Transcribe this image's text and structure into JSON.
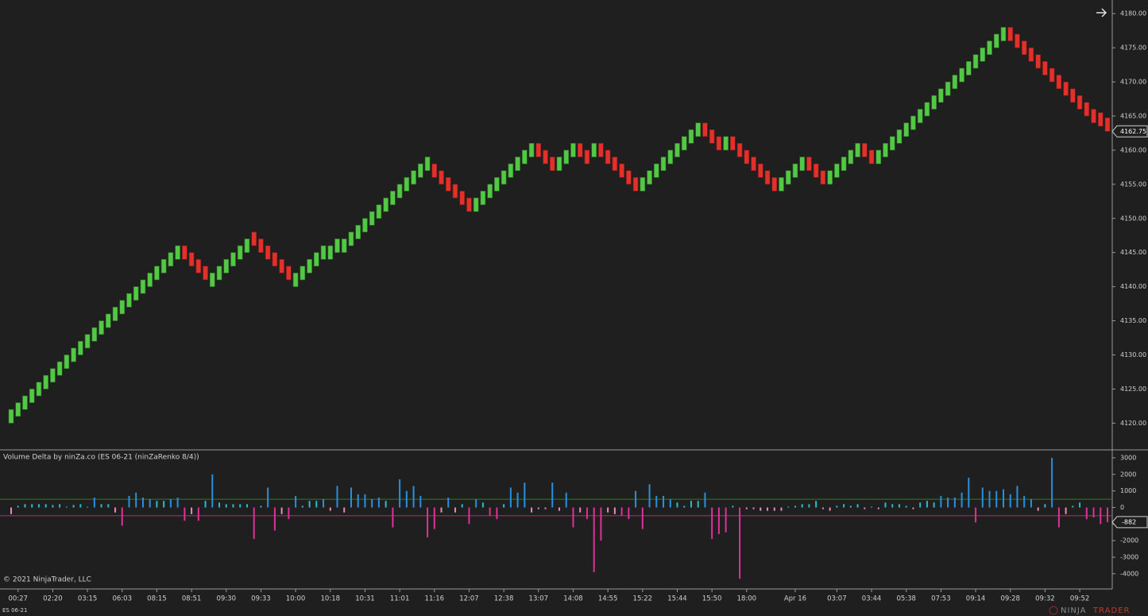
{
  "chart_data": {
    "type": "candlestick",
    "up_color": "#52c845",
    "down_color": "#e2302b",
    "ylim": [
      4116.2,
      4182
    ],
    "yticks": [
      {
        "value": 4120,
        "label": "4120.00"
      },
      {
        "value": 4125,
        "label": "4125.00"
      },
      {
        "value": 4130,
        "label": "4130.00"
      },
      {
        "value": 4135,
        "label": "4135.00"
      },
      {
        "value": 4140,
        "label": "4140.00"
      },
      {
        "value": 4145,
        "label": "4145.00"
      },
      {
        "value": 4150,
        "label": "4150.00"
      },
      {
        "value": 4155,
        "label": "4155.00"
      },
      {
        "value": 4160,
        "label": "4160.00"
      },
      {
        "value": 4165,
        "label": "4165.00"
      },
      {
        "value": 4170,
        "label": "4170.00"
      },
      {
        "value": 4175,
        "label": "4175.00"
      },
      {
        "value": 4180,
        "label": "4180.00"
      }
    ],
    "categories": [
      null,
      "00:27",
      null,
      null,
      null,
      null,
      "02:20",
      null,
      null,
      null,
      null,
      "03:15",
      null,
      null,
      null,
      null,
      "06:03",
      null,
      null,
      null,
      null,
      "08:15",
      null,
      null,
      null,
      null,
      "08:51",
      null,
      null,
      null,
      null,
      "09:30",
      null,
      null,
      null,
      null,
      "09:33",
      null,
      null,
      null,
      null,
      "10:00",
      null,
      null,
      null,
      null,
      "10:18",
      null,
      null,
      null,
      null,
      "10:31",
      null,
      null,
      null,
      null,
      "11:01",
      null,
      null,
      null,
      null,
      "11:16",
      null,
      null,
      null,
      null,
      "12:07",
      null,
      null,
      null,
      null,
      "12:38",
      null,
      null,
      null,
      null,
      "13:07",
      null,
      null,
      null,
      null,
      "14:08",
      null,
      null,
      null,
      null,
      "14:55",
      null,
      null,
      null,
      null,
      "15:22",
      null,
      null,
      null,
      null,
      "15:44",
      null,
      null,
      null,
      null,
      "15:50",
      null,
      null,
      null,
      null,
      "18:00",
      null,
      null,
      null,
      null,
      null,
      null,
      "Apr 16",
      null,
      null,
      null,
      null,
      null,
      "03:07",
      null,
      null,
      null,
      null,
      "03:44",
      null,
      null,
      null,
      null,
      "05:38",
      null,
      null,
      null,
      null,
      "07:53",
      null,
      null,
      null,
      null,
      "09:14",
      null,
      null,
      null,
      null,
      "09:28",
      null,
      null,
      null,
      null,
      "09:32",
      null,
      null,
      null,
      null,
      "09:52",
      null,
      null,
      null,
      null
    ],
    "open": [
      4120,
      4121,
      4122,
      4123,
      4124,
      4125,
      4126,
      4127,
      4128,
      4129,
      4130,
      4131,
      4132,
      4133,
      4134,
      4135,
      4136,
      4137,
      4138,
      4139,
      4140,
      4141,
      4142,
      4143,
      4144,
      4146,
      4145,
      4144,
      4143,
      4140,
      4141,
      4142,
      4143,
      4144,
      4145,
      4148,
      4147,
      4146,
      4145,
      4144,
      4143,
      4140,
      4141,
      4142,
      4143,
      4144,
      4144,
      4145,
      4145,
      4146,
      4147,
      4148,
      4149,
      4150,
      4151,
      4152,
      4153,
      4154,
      4155,
      4156,
      4157,
      4158,
      4157,
      4156,
      4155,
      4154,
      4153,
      4151,
      4152,
      4153,
      4154,
      4155,
      4156,
      4157,
      4158,
      4159,
      4161,
      4160,
      4159,
      4157,
      4158,
      4159,
      4161,
      4160,
      4159,
      4161,
      4160,
      4159,
      4158,
      4157,
      4156,
      4154,
      4155,
      4156,
      4157,
      4158,
      4159,
      4160,
      4161,
      4162,
      4164,
      4163,
      4162,
      4160,
      4162,
      4161,
      4160,
      4159,
      4158,
      4157,
      4156,
      4154,
      4155,
      4156,
      4157,
      4159,
      4158,
      4157,
      4155,
      4156,
      4157,
      4158,
      4159,
      4161,
      4160,
      4158,
      4159,
      4160,
      4161,
      4162,
      4163,
      4164,
      4165,
      4166,
      4167,
      4168,
      4169,
      4170,
      4171,
      4172,
      4173,
      4174,
      4175,
      4176,
      4178,
      4177,
      4176,
      4175,
      4174,
      4173,
      4172,
      4171,
      4170,
      4169,
      4168,
      4167,
      4166,
      4165.5,
      4164.75
    ],
    "close": [
      4122,
      4123,
      4124,
      4125,
      4126,
      4127,
      4128,
      4129,
      4130,
      4131,
      4132,
      4133,
      4134,
      4135,
      4136,
      4137,
      4138,
      4139,
      4140,
      4141,
      4142,
      4143,
      4144,
      4145,
      4146,
      4144,
      4143,
      4142,
      4141,
      4142,
      4143,
      4144,
      4145,
      4146,
      4147,
      4146,
      4145,
      4144,
      4143,
      4142,
      4141,
      4142,
      4143,
      4144,
      4145,
      4146,
      4146,
      4147,
      4147,
      4148,
      4149,
      4150,
      4151,
      4152,
      4153,
      4154,
      4155,
      4156,
      4157,
      4158,
      4159,
      4156,
      4155,
      4154,
      4153,
      4152,
      4151,
      4153,
      4154,
      4155,
      4156,
      4157,
      4158,
      4159,
      4160,
      4161,
      4159,
      4158,
      4157,
      4159,
      4160,
      4161,
      4159,
      4158,
      4161,
      4159,
      4158,
      4157,
      4156,
      4155,
      4154,
      4156,
      4157,
      4158,
      4159,
      4160,
      4161,
      4162,
      4163,
      4164,
      4162,
      4161,
      4160,
      4162,
      4160,
      4159,
      4158,
      4157,
      4156,
      4155,
      4154,
      4156,
      4157,
      4158,
      4159,
      4157,
      4156,
      4155,
      4157,
      4158,
      4159,
      4160,
      4161,
      4159,
      4158,
      4160,
      4161,
      4162,
      4163,
      4164,
      4165,
      4166,
      4167,
      4168,
      4169,
      4170,
      4171,
      4172,
      4173,
      4174,
      4175,
      4176,
      4177,
      4178,
      4176,
      4175,
      4174,
      4173,
      4172,
      4171,
      4170,
      4169,
      4168,
      4167,
      4166,
      4165,
      4164,
      4163.5,
      4162.75
    ],
    "lower_panel": {
      "type": "bar",
      "title": "Volume Delta by ninZa.co (ES 06-21 (ninZaRenko 8/4))",
      "ylim": [
        -4870,
        3430
      ],
      "yticks": [
        3000,
        2000,
        1000,
        0,
        -1000,
        -2000,
        -3000,
        -4000
      ],
      "levels": [
        500,
        -500
      ],
      "level_colors": [
        "#2f7a2f",
        "#b0307a"
      ],
      "colors": {
        "strong_up": "#2b8fe0",
        "weak_up": "#27bccf",
        "strong_down": "#e0309a",
        "weak_down": "#e98ab6"
      },
      "values": [
        -400,
        100,
        200,
        200,
        200,
        200,
        150,
        200,
        50,
        150,
        200,
        50,
        600,
        200,
        200,
        -300,
        -1100,
        700,
        900,
        600,
        500,
        400,
        400,
        500,
        600,
        -800,
        -400,
        -800,
        400,
        2000,
        300,
        200,
        200,
        200,
        200,
        -1900,
        100,
        1200,
        -1400,
        -400,
        -700,
        700,
        100,
        400,
        400,
        500,
        -200,
        1300,
        -300,
        1200,
        800,
        800,
        500,
        600,
        400,
        -1200,
        1700,
        1000,
        1300,
        700,
        -1800,
        -1300,
        -300,
        600,
        -300,
        200,
        -1000,
        500,
        300,
        -500,
        -700,
        200,
        1200,
        900,
        1500,
        -300,
        -100,
        -100,
        1500,
        -200,
        900,
        -1200,
        -300,
        -700,
        -3900,
        -2000,
        -300,
        -400,
        -500,
        -700,
        1000,
        -1300,
        1400,
        700,
        700,
        500,
        300,
        100,
        400,
        400,
        900,
        -1900,
        -1600,
        -1500,
        100,
        -4300,
        -100,
        -100,
        -200,
        -200,
        -200,
        -200,
        50,
        100,
        200,
        200,
        400,
        -100,
        -200,
        100,
        200,
        100,
        200,
        -100,
        50,
        -100,
        300,
        200,
        200,
        100,
        -100,
        300,
        400,
        300,
        700,
        600,
        600,
        900,
        1800,
        -900,
        1200,
        1000,
        1000,
        1100,
        800,
        1300,
        700,
        500,
        -200,
        200,
        3000,
        -1200,
        -400,
        100,
        300,
        -700,
        -600,
        -1000,
        -882
      ]
    },
    "footer": {
      "copyright": "© 2021 NinjaTrader, LLC",
      "instrument": "ES 06-21",
      "logo_left": "NINJA",
      "logo_right": "TRADER"
    }
  }
}
